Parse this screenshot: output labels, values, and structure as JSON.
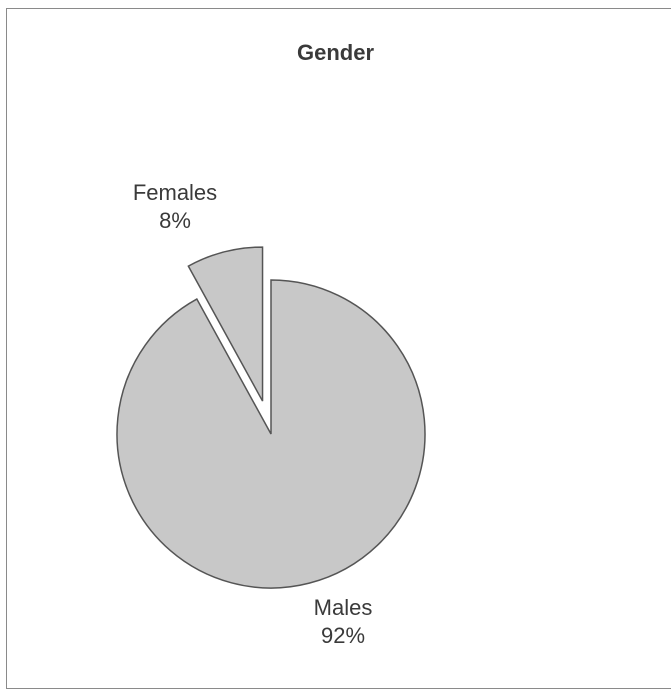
{
  "chart_data": {
    "type": "pie",
    "title": "Gender",
    "slices": [
      {
        "name": "Males",
        "value": 92,
        "label": "Males",
        "pct_label": "92%",
        "exploded": false
      },
      {
        "name": "Females",
        "value": 8,
        "label": "Females",
        "pct_label": "8%",
        "exploded": true
      }
    ],
    "colors": {
      "slice_fill": "#c8c8c8",
      "slice_stroke": "#555555",
      "frame": "#8a8a8a"
    },
    "legend": "none"
  }
}
